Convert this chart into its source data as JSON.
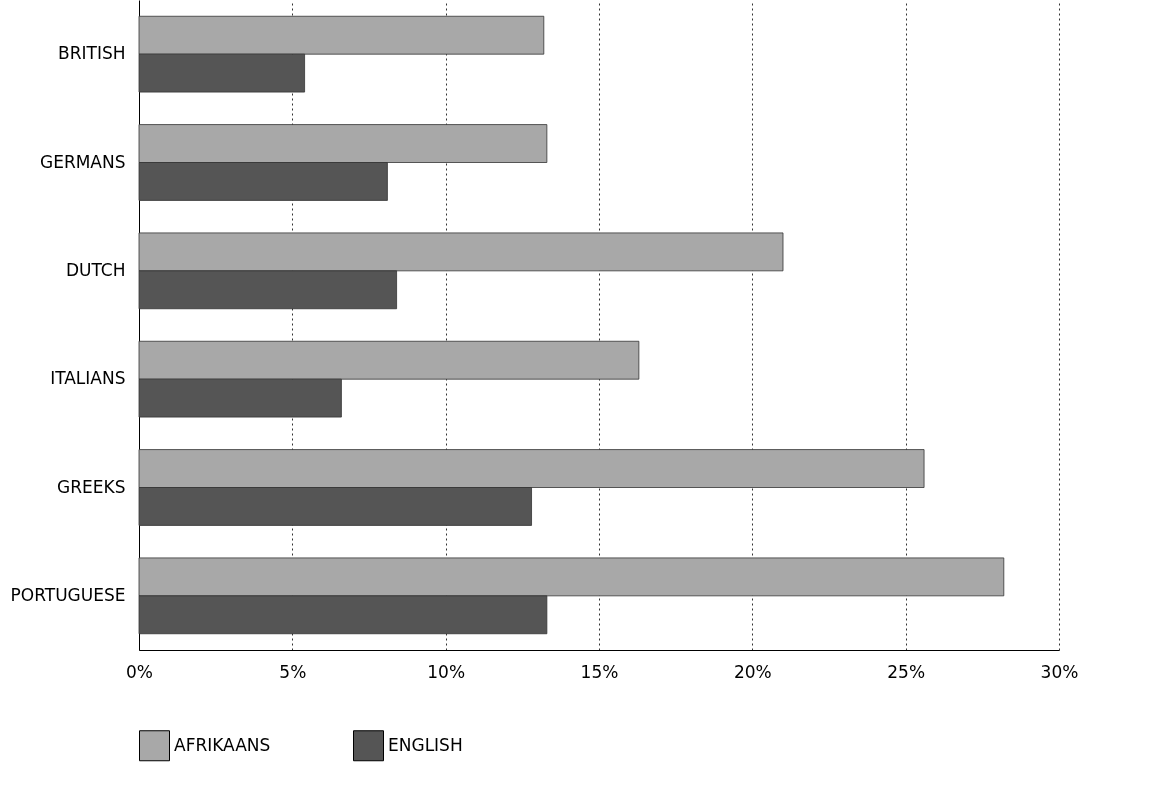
{
  "chart_data": {
    "type": "bar",
    "orientation": "horizontal",
    "categories": [
      "BRITISH",
      "GERMANS",
      "DUTCH",
      "ITALIANS",
      "GREEKS",
      "PORTUGUESE"
    ],
    "series": [
      {
        "name": "AFRIKAANS",
        "color": "#a8a8a8",
        "values": [
          13.2,
          13.3,
          21.0,
          16.3,
          25.6,
          28.2
        ]
      },
      {
        "name": "ENGLISH",
        "color": "#555555",
        "values": [
          5.4,
          8.1,
          8.4,
          6.6,
          12.8,
          13.3
        ]
      }
    ],
    "xlim": [
      0,
      30
    ],
    "xticks": [
      {
        "value": 0,
        "label": "0%"
      },
      {
        "value": 5,
        "label": "5%"
      },
      {
        "value": 10,
        "label": "10%"
      },
      {
        "value": 15,
        "label": "15%"
      },
      {
        "value": 20,
        "label": "20%"
      },
      {
        "value": 25,
        "label": "25%"
      },
      {
        "value": 30,
        "label": "30%"
      }
    ],
    "grid": "x",
    "legend": "bottom"
  }
}
